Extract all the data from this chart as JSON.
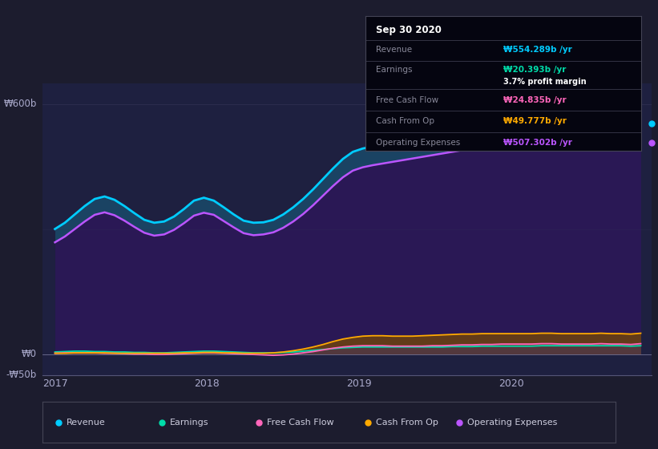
{
  "background_color": "#1c1c2e",
  "plot_bg_color": "#1e2040",
  "title": "Sep 30 2020",
  "ylabel_600": "₩600b",
  "ylabel_0": "₩0",
  "ylabel_neg50": "-₩50b",
  "x_labels": [
    "2017",
    "2018",
    "2019",
    "2020"
  ],
  "series": {
    "Revenue": {
      "color": "#00ccff",
      "fill_color": "#1a6b8a",
      "legend_color": "#00ccff"
    },
    "Operating Expenses": {
      "color": "#bb55ff",
      "fill_color": "#2d1b5e",
      "legend_color": "#bb55ff"
    },
    "Earnings": {
      "color": "#00ddaa",
      "legend_color": "#00ddaa"
    },
    "Free Cash Flow": {
      "color": "#ff66bb",
      "legend_color": "#ff66bb"
    },
    "Cash From Op": {
      "color": "#ffaa00",
      "legend_color": "#ffaa00"
    }
  },
  "tooltip": {
    "date": "Sep 30 2020",
    "revenue_val": "554.289b",
    "earnings_val": "20.393b",
    "profit_margin": "3.7%",
    "fcf_val": "24.835b",
    "cash_op_val": "49.777b",
    "op_exp_val": "507.302b",
    "revenue_color": "#00ccff",
    "earnings_color": "#00ddaa",
    "fcf_color": "#ff66bb",
    "cash_op_color": "#ffaa00",
    "op_exp_color": "#bb55ff"
  },
  "ylim": [
    -50,
    650
  ],
  "num_points": 60
}
